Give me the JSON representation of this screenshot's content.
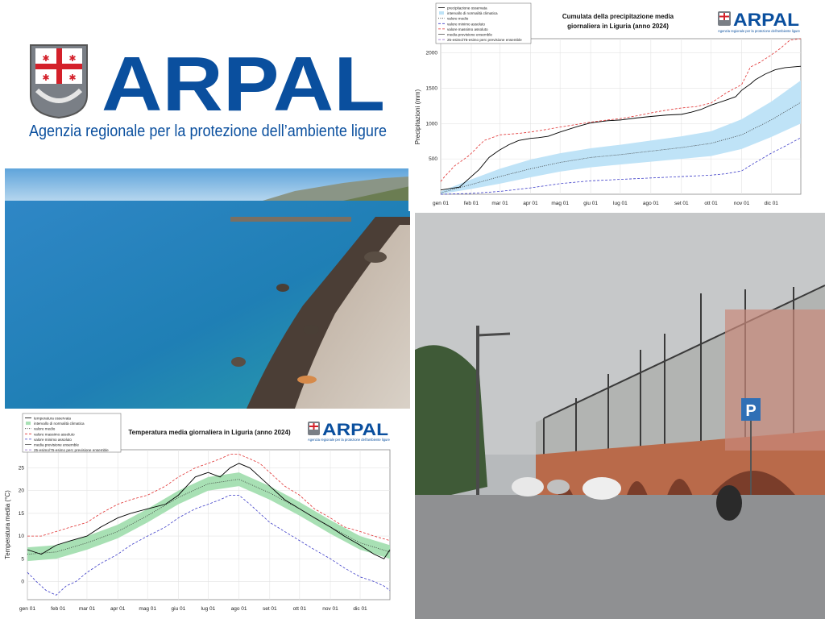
{
  "logo": {
    "brand": "ARPAL",
    "subtitle": "Agenzia regionale per la protezione dell’ambiente ligure",
    "brand_color": "#0a4f9e"
  },
  "photos": {
    "beach": {},
    "rain": {
      "parking_sign": "P"
    }
  },
  "precip_logo": {
    "brand": "ARPAL",
    "subtitle": "Agenzia regionale per la protezione dell’ambiente ligure"
  },
  "temp_logo": {
    "brand": "ARPAL",
    "subtitle": "Agenzia regionale per la protezione dell’ambiente ligure"
  },
  "chart_data": [
    {
      "type": "line",
      "title": "Cumulata della precipitazione media giornaliera in Liguria (anno 2024)",
      "title_lines": [
        "Cumulata della precipitazione media",
        "giornaliera in Liguria (anno 2024)"
      ],
      "xlabel": "",
      "ylabel": "Precipitazioni (mm)",
      "x_ticks": [
        "gen 01",
        "feb 01",
        "mar 01",
        "apr 01",
        "mag 01",
        "giu 01",
        "lug 01",
        "ago 01",
        "set 01",
        "ott 01",
        "nov 01",
        "dic 01"
      ],
      "x_tick_days": [
        1,
        32,
        61,
        92,
        122,
        153,
        183,
        214,
        245,
        275,
        306,
        336
      ],
      "x_range": [
        1,
        366
      ],
      "ylim": [
        0,
        2200
      ],
      "y_ticks": [
        500,
        1000,
        1500,
        2000
      ],
      "grid": true,
      "legend_position": "top-left",
      "legend": [
        "precipitazione osservata",
        "intervallo di normalità climatica",
        "valore medio",
        "valore minimo assoluto",
        "valore massimo assoluto",
        "media previsione ensemble",
        "25-esimo/75-esimo perc previsione ensemble"
      ],
      "series": [
        {
          "name": "precipitazione osservata",
          "color": "#000000",
          "style": "solid",
          "x": [
            1,
            20,
            40,
            50,
            60,
            70,
            80,
            92,
            100,
            110,
            122,
            140,
            153,
            170,
            183,
            200,
            214,
            230,
            245,
            255,
            265,
            275,
            290,
            300,
            306,
            315,
            320,
            330,
            340,
            350,
            366
          ],
          "y": [
            60,
            100,
            350,
            520,
            620,
            700,
            760,
            790,
            800,
            820,
            880,
            960,
            1010,
            1040,
            1050,
            1080,
            1100,
            1120,
            1130,
            1160,
            1200,
            1260,
            1330,
            1380,
            1470,
            1560,
            1620,
            1700,
            1760,
            1790,
            1810
          ]
        },
        {
          "name": "valore massimo assoluto",
          "color": "#e03030",
          "style": "dashed",
          "x": [
            1,
            5,
            15,
            30,
            45,
            61,
            80,
            92,
            110,
            122,
            140,
            153,
            170,
            183,
            200,
            214,
            230,
            245,
            260,
            275,
            290,
            306,
            315,
            325,
            335,
            345,
            355,
            366
          ],
          "y": [
            180,
            250,
            400,
            550,
            760,
            840,
            860,
            880,
            920,
            950,
            990,
            1020,
            1050,
            1070,
            1110,
            1150,
            1190,
            1220,
            1240,
            1290,
            1430,
            1550,
            1800,
            1870,
            1960,
            2060,
            2180,
            2200
          ]
        },
        {
          "name": "valore medio",
          "color": "#333333",
          "style": "dotted",
          "x": [
            1,
            30,
            61,
            92,
            122,
            153,
            183,
            214,
            245,
            275,
            306,
            336,
            366
          ],
          "y": [
            20,
            130,
            250,
            360,
            450,
            520,
            560,
            610,
            660,
            720,
            840,
            1050,
            1300
          ]
        },
        {
          "name": "valore minimo assoluto",
          "color": "#3d3dc8",
          "style": "dashed",
          "x": [
            1,
            30,
            61,
            92,
            122,
            153,
            183,
            214,
            245,
            260,
            275,
            290,
            306,
            320,
            336,
            350,
            366
          ],
          "y": [
            0,
            10,
            40,
            90,
            150,
            190,
            210,
            230,
            250,
            260,
            270,
            290,
            330,
            450,
            580,
            680,
            800
          ]
        }
      ],
      "band": {
        "name": "intervallo di normalità climatica",
        "color": "#bfe3f7",
        "x": [
          1,
          30,
          61,
          92,
          122,
          153,
          183,
          214,
          245,
          275,
          306,
          336,
          366
        ],
        "low": [
          5,
          70,
          150,
          240,
          320,
          380,
          420,
          460,
          500,
          540,
          640,
          810,
          1000
        ],
        "high": [
          40,
          200,
          360,
          490,
          580,
          650,
          700,
          760,
          820,
          890,
          1060,
          1310,
          1610
        ]
      }
    },
    {
      "type": "line",
      "title": "Temperatura media giornaliera in Liguria (anno 2024)",
      "xlabel": "",
      "ylabel": "Temperatura media (°C)",
      "x_ticks": [
        "gen 01",
        "feb 01",
        "mar 01",
        "apr 01",
        "mag 01",
        "giu 01",
        "lug 01",
        "ago 01",
        "set 01",
        "ott 01",
        "nov 01",
        "dic 01"
      ],
      "x_tick_days": [
        1,
        32,
        61,
        92,
        122,
        153,
        183,
        214,
        245,
        275,
        306,
        336
      ],
      "x_range": [
        1,
        366
      ],
      "ylim": [
        -4,
        29
      ],
      "y_ticks": [
        0,
        5,
        10,
        15,
        20,
        25
      ],
      "grid": true,
      "legend_position": "top-left",
      "legend": [
        "temperatura osservata",
        "intervallo di normalità climatica",
        "valore medio",
        "valore massimo assoluto",
        "valore minimo assoluto",
        "media previsione ensemble",
        "25-esimo/75-esimo perc previsione ensemble"
      ],
      "series": [
        {
          "name": "temperatura osservata",
          "color": "#000000",
          "style": "solid",
          "x": [
            1,
            15,
            30,
            45,
            61,
            75,
            92,
            105,
            122,
            140,
            153,
            170,
            183,
            195,
            205,
            214,
            225,
            235,
            245,
            260,
            275,
            290,
            306,
            320,
            336,
            350,
            360,
            366
          ],
          "y": [
            7,
            6,
            8,
            9,
            10,
            12,
            14,
            15,
            16,
            17,
            19,
            23,
            24,
            23,
            25,
            26,
            25,
            23,
            21,
            18,
            16,
            14,
            12,
            10,
            8,
            6,
            5,
            7
          ]
        },
        {
          "name": "valore massimo assoluto",
          "color": "#e03030",
          "style": "dashed",
          "x": [
            1,
            15,
            30,
            45,
            61,
            75,
            92,
            105,
            122,
            140,
            153,
            170,
            183,
            195,
            205,
            214,
            225,
            235,
            245,
            260,
            275,
            290,
            306,
            320,
            336,
            350,
            366
          ],
          "y": [
            10,
            10,
            11,
            12,
            13,
            15,
            17,
            18,
            19,
            21,
            23,
            25,
            26,
            27,
            28,
            28,
            27,
            26,
            24,
            21,
            19,
            16,
            14,
            12,
            11,
            10,
            9
          ]
        },
        {
          "name": "valore medio",
          "color": "#333333",
          "style": "dotted",
          "x": [
            1,
            30,
            61,
            92,
            122,
            153,
            183,
            214,
            245,
            275,
            306,
            336,
            366
          ],
          "y": [
            6,
            6.5,
            8.5,
            11,
            14.5,
            18.5,
            21.5,
            22.5,
            19.5,
            16,
            12,
            8.5,
            6.5
          ]
        },
        {
          "name": "valore minimo assoluto",
          "color": "#3d3dc8",
          "style": "dashed",
          "x": [
            1,
            10,
            20,
            30,
            40,
            50,
            61,
            75,
            92,
            105,
            122,
            140,
            153,
            170,
            183,
            195,
            205,
            214,
            225,
            235,
            245,
            260,
            275,
            290,
            306,
            320,
            336,
            350,
            360,
            366
          ],
          "y": [
            2,
            0,
            -2,
            -3,
            -1,
            0,
            2,
            4,
            6,
            8,
            10,
            12,
            14,
            16,
            17,
            18,
            19,
            19,
            17,
            15,
            13,
            11,
            9,
            7,
            5,
            3,
            1,
            0,
            -1,
            -2
          ]
        }
      ],
      "band": {
        "name": "intervallo di normalità climatica",
        "color": "#a8e0b4",
        "x": [
          1,
          30,
          61,
          92,
          122,
          153,
          183,
          214,
          245,
          275,
          306,
          336,
          366
        ],
        "low": [
          4.5,
          5,
          7,
          9.5,
          13,
          17,
          20,
          21,
          18,
          14.5,
          10.5,
          7,
          5
        ],
        "high": [
          7.5,
          8,
          10,
          12.5,
          16,
          20,
          23,
          24,
          21,
          17.5,
          13.5,
          10,
          8
        ]
      }
    }
  ]
}
